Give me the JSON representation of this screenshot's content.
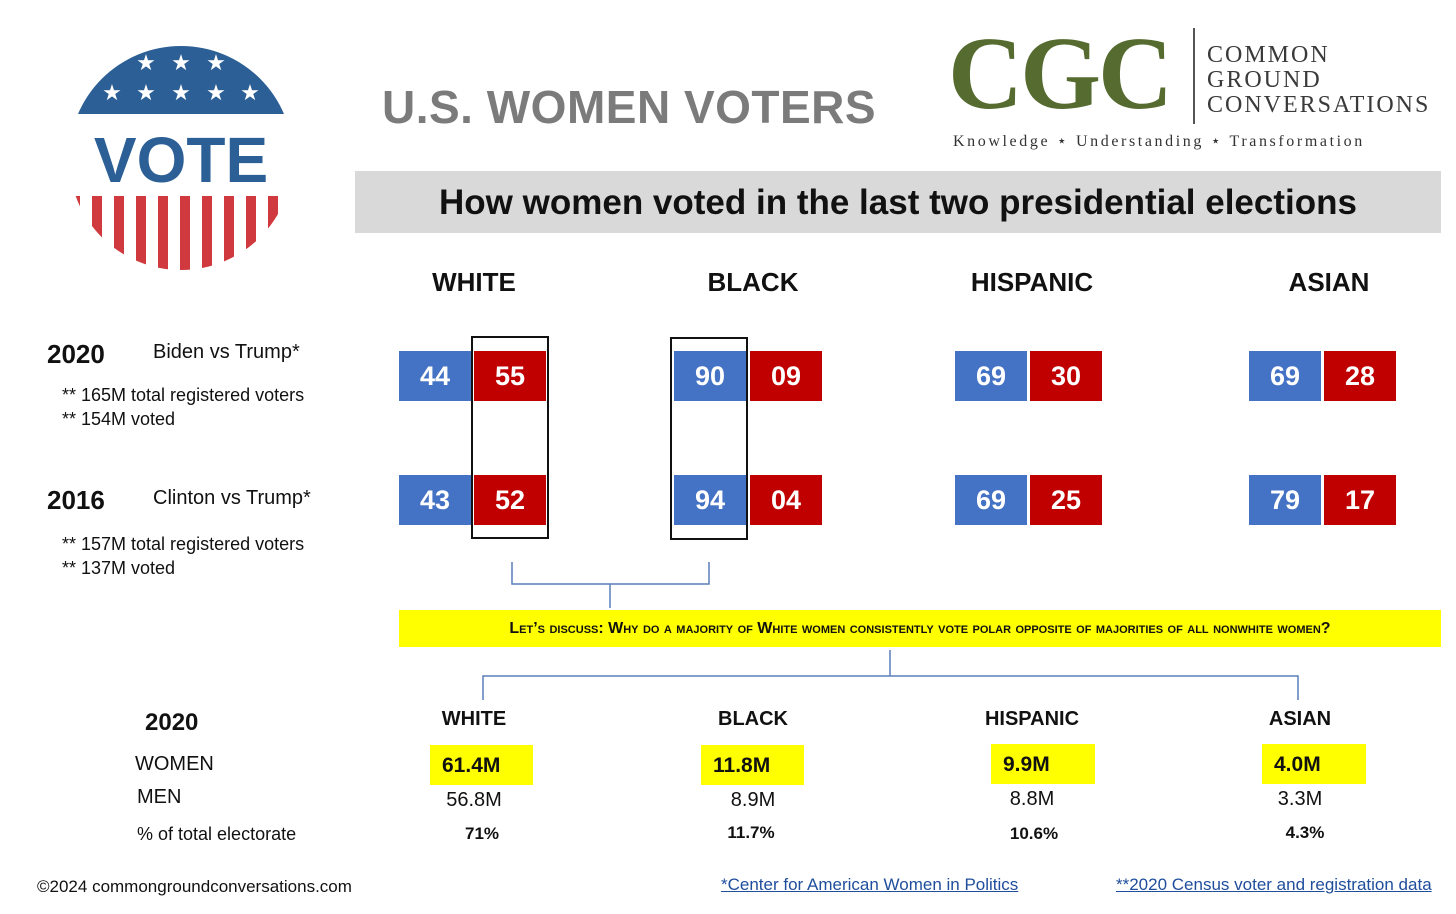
{
  "badge": {
    "text": "VOTE"
  },
  "title": "U.S. WOMEN VOTERS",
  "logo": {
    "letters": "CGC",
    "words": [
      "COMMON",
      "GROUND",
      "CONVERSATIONS"
    ],
    "tagline": "Knowledge ⋆ Understanding ⋆ Transformation"
  },
  "subtitle": "How women voted in the last two presidential elections",
  "groups": [
    "WHITE",
    "BLACK",
    "HISPANIC",
    "ASIAN"
  ],
  "elections": [
    {
      "year": "2020",
      "matchup": "Biden vs Trump*",
      "notes": [
        "** 165M total registered voters",
        "** 154M voted"
      ],
      "results": [
        {
          "dem": "44",
          "rep": "55"
        },
        {
          "dem": "90",
          "rep": "09"
        },
        {
          "dem": "69",
          "rep": "30"
        },
        {
          "dem": "69",
          "rep": "28"
        }
      ]
    },
    {
      "year": "2016",
      "matchup": "Clinton vs Trump*",
      "notes": [
        "** 157M total registered voters",
        "** 137M voted"
      ],
      "results": [
        {
          "dem": "43",
          "rep": "52"
        },
        {
          "dem": "94",
          "rep": "04"
        },
        {
          "dem": "69",
          "rep": "25"
        },
        {
          "dem": "79",
          "rep": "17"
        }
      ]
    }
  ],
  "question": "Let’s discuss: Why do a majority of White women consistently vote polar opposite of majorities of all nonwhite women?",
  "electorate": {
    "year": "2020",
    "row_labels": {
      "women": "WOMEN",
      "men": "MEN",
      "pct": "% of total electorate"
    },
    "groups": [
      {
        "name": "WHITE",
        "women": "61.4M",
        "men": "56.8M",
        "pct": "71%"
      },
      {
        "name": "BLACK",
        "women": "11.8M",
        "men": "8.9M",
        "pct": "11.7%"
      },
      {
        "name": "HISPANIC",
        "women": "9.9M",
        "men": "8.8M",
        "pct": "10.6%"
      },
      {
        "name": "ASIAN",
        "women": "4.0M",
        "men": "3.3M",
        "pct": "4.3%"
      }
    ]
  },
  "footer": {
    "copyright": "©2024 commongroundconversations.com",
    "source1": "*Center for American Women in Politics",
    "source2": "**2020 Census voter and registration data"
  },
  "colors": {
    "dem": "#4472c4",
    "rep": "#c00000",
    "highlight": "#ffff00",
    "logo_green": "#556b2f",
    "title_gray": "#7b7b7b"
  }
}
